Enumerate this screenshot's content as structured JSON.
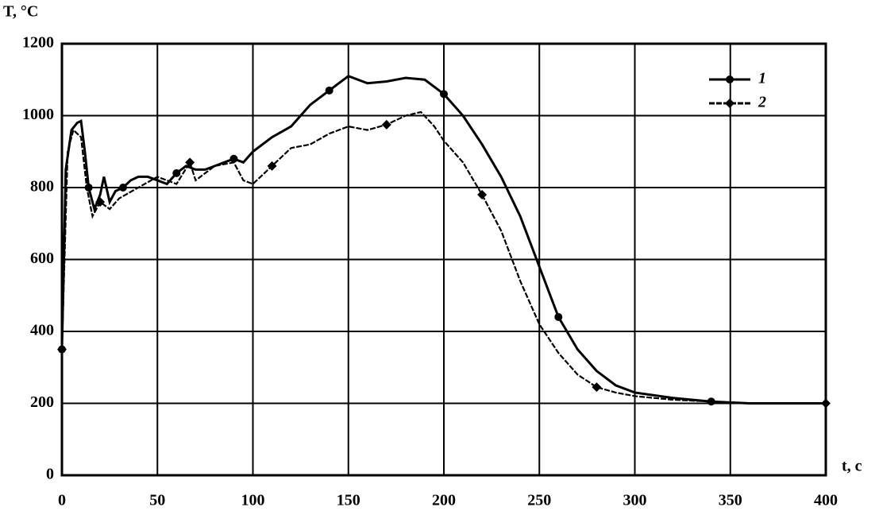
{
  "chart_data": {
    "type": "line",
    "ylabel": "T, °C",
    "xlabel": "t, c",
    "xlim": [
      0,
      400
    ],
    "xticks": [
      0,
      50,
      100,
      150,
      200,
      250,
      300,
      350,
      400
    ],
    "ylim": [
      0,
      1200
    ],
    "yticks": [
      0,
      200,
      400,
      600,
      800,
      1000,
      1200
    ],
    "grid": true,
    "legend": "upper right",
    "series": [
      {
        "name": "1",
        "color": "#000000",
        "marker": "circle",
        "x": [
          0,
          2,
          5,
          8,
          10,
          12,
          14,
          17,
          20,
          22,
          25,
          28,
          32,
          36,
          40,
          45,
          50,
          55,
          60,
          65,
          70,
          75,
          80,
          85,
          90,
          95,
          100,
          110,
          120,
          130,
          140,
          150,
          160,
          170,
          180,
          190,
          200,
          210,
          220,
          230,
          240,
          250,
          260,
          270,
          280,
          290,
          300,
          320,
          340,
          360,
          380,
          400
        ],
        "values": [
          350,
          850,
          960,
          980,
          985,
          900,
          800,
          740,
          780,
          830,
          760,
          790,
          800,
          820,
          830,
          830,
          820,
          810,
          840,
          860,
          850,
          850,
          860,
          870,
          880,
          870,
          900,
          940,
          970,
          1030,
          1070,
          1110,
          1090,
          1095,
          1105,
          1100,
          1060,
          1000,
          920,
          830,
          720,
          580,
          440,
          350,
          290,
          250,
          230,
          215,
          205,
          200,
          200,
          200
        ]
      },
      {
        "name": "2",
        "color": "#000000",
        "marker": "diamond",
        "x": [
          0,
          3,
          6,
          10,
          13,
          16,
          20,
          25,
          30,
          40,
          50,
          60,
          67,
          70,
          80,
          90,
          95,
          100,
          110,
          120,
          130,
          140,
          150,
          160,
          170,
          180,
          188,
          195,
          200,
          210,
          220,
          230,
          240,
          250,
          260,
          270,
          280,
          290,
          300,
          320,
          340,
          360,
          400
        ],
        "values": [
          350,
          900,
          960,
          940,
          800,
          720,
          760,
          740,
          770,
          800,
          830,
          810,
          870,
          820,
          860,
          870,
          820,
          810,
          860,
          910,
          920,
          950,
          970,
          960,
          975,
          1000,
          1010,
          970,
          930,
          870,
          780,
          680,
          540,
          420,
          340,
          280,
          245,
          230,
          220,
          210,
          205,
          200,
          200
        ]
      }
    ]
  }
}
